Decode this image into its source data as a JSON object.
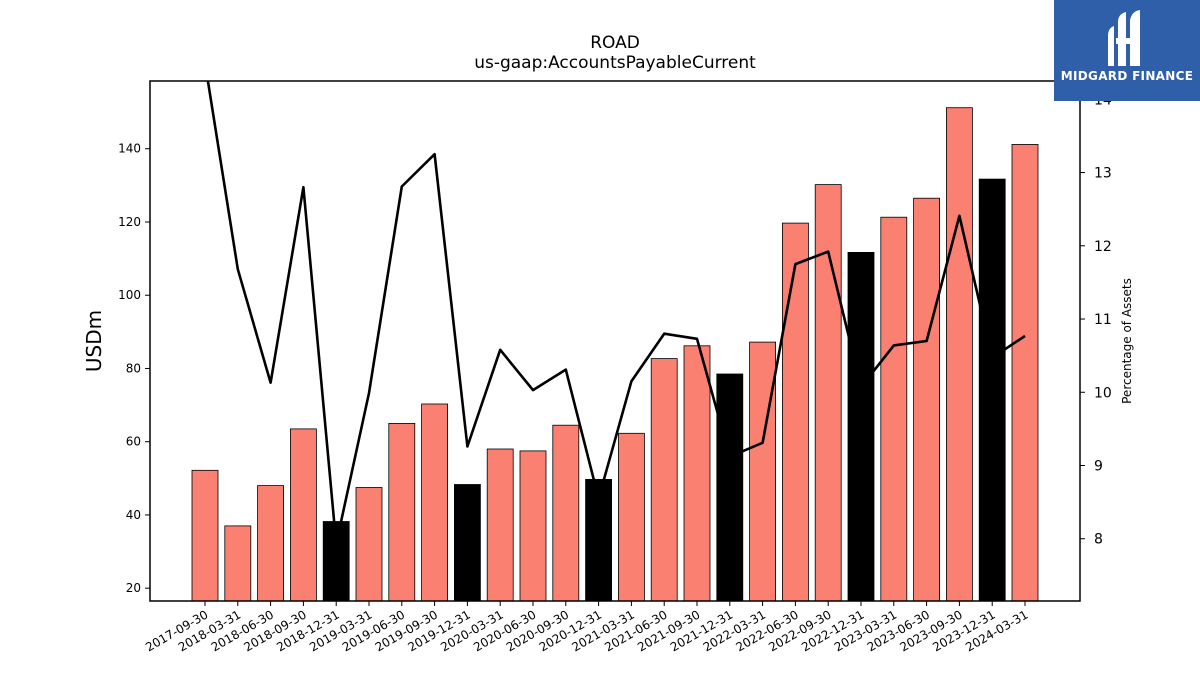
{
  "chart_data": {
    "type": "bar",
    "title": "ROAD",
    "subtitle": "us-gaap:AccountsPayableCurrent",
    "ylabel": "USDm",
    "y2label": "Percentage of Assets",
    "categories": [
      "2017-09-30",
      "2018-03-31",
      "2018-06-30",
      "2018-09-30",
      "2018-12-31",
      "2019-03-31",
      "2019-06-30",
      "2019-09-30",
      "2019-12-31",
      "2020-03-31",
      "2020-06-30",
      "2020-09-30",
      "2020-12-31",
      "2021-03-31",
      "2021-06-30",
      "2021-09-30",
      "2021-12-31",
      "2022-03-31",
      "2022-06-30",
      "2022-09-30",
      "2022-12-31",
      "2023-03-31",
      "2023-06-30",
      "2023-09-30",
      "2023-12-31",
      "2024-03-31"
    ],
    "series": [
      {
        "type": "bar",
        "values": [
          52.2,
          37.0,
          48.0,
          63.5,
          38.2,
          47.5,
          65.0,
          70.3,
          48.3,
          58.0,
          57.5,
          64.5,
          49.7,
          62.3,
          82.7,
          86.2,
          78.5,
          87.2,
          119.7,
          130.2,
          111.7,
          121.3,
          126.5,
          151.2,
          131.7,
          141.2
        ],
        "colors": [
          "salmon",
          "salmon",
          "salmon",
          "salmon",
          "black",
          "salmon",
          "salmon",
          "salmon",
          "black",
          "salmon",
          "salmon",
          "salmon",
          "black",
          "salmon",
          "salmon",
          "salmon",
          "black",
          "salmon",
          "salmon",
          "salmon",
          "black",
          "salmon",
          "salmon",
          "salmon",
          "black",
          "salmon"
        ]
      },
      {
        "type": "line",
        "axis": "right",
        "values": [
          14.5,
          11.68,
          10.13,
          12.8,
          7.93,
          9.99,
          12.81,
          13.25,
          9.26,
          10.58,
          10.03,
          10.31,
          8.55,
          10.15,
          10.8,
          10.73,
          9.12,
          9.31,
          11.75,
          11.92,
          10.07,
          10.64,
          10.7,
          12.41,
          10.47,
          10.77
        ]
      }
    ],
    "ylim": [
      16.5,
      158.5
    ],
    "y2lim": [
      7.15,
      14.25
    ],
    "yticks": [
      20,
      40,
      60,
      80,
      100,
      120,
      140
    ],
    "y2ticks": [
      8,
      9,
      10,
      11,
      12,
      13,
      14
    ],
    "grid": false,
    "colors": {
      "salmon": "#fa8072",
      "black": "#000000",
      "line": "#000000"
    }
  },
  "logo": {
    "text": "MIDGARD FINANCE",
    "background": "#2f5fa8"
  }
}
